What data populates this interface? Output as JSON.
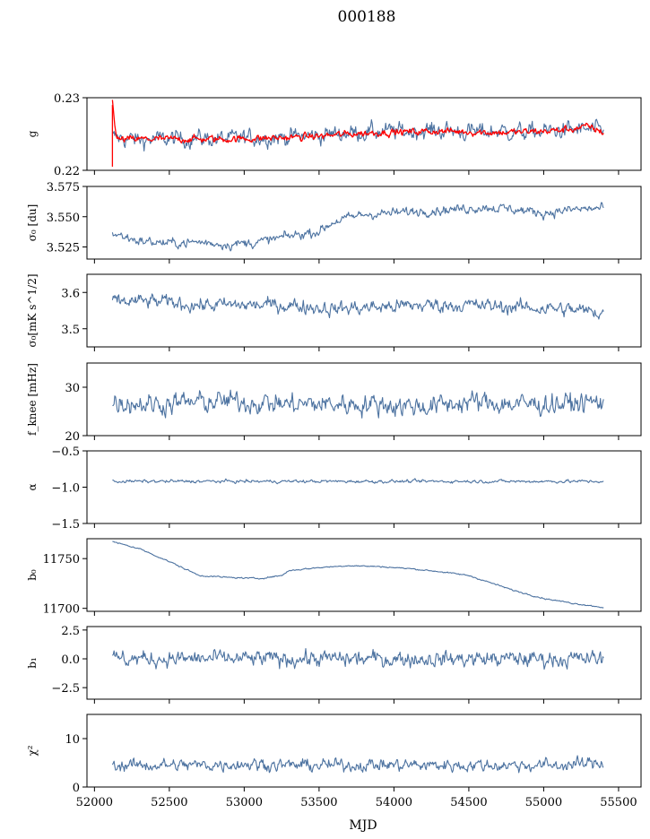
{
  "figure": {
    "title": "000188",
    "xlabel": "MJD",
    "series_color": "#4c72a0",
    "model_color": "#ff0000"
  },
  "chart_data": {
    "type": "line",
    "title": "000188",
    "xlabel": "MJD",
    "xlim": [
      51950,
      55650
    ],
    "x_ticks": [
      52000,
      52500,
      53000,
      53500,
      54000,
      54500,
      55000,
      55500
    ],
    "x_range": [
      52120,
      55400
    ],
    "panels": [
      {
        "id": "g",
        "ylabel": "g",
        "ylim": [
          0.22,
          0.23
        ],
        "yticks": [
          {
            "v": 0.22,
            "label": "0.22"
          },
          {
            "v": 0.23,
            "label": "0.23"
          }
        ],
        "series": [
          {
            "name": "",
            "color": "#4c72a0",
            "x": [
              52120,
              52300,
              52500,
              52700,
              52900,
              53100,
              53300,
              53500,
              53700,
              53900,
              54100,
              54300,
              54500,
              54700,
              54900,
              55100,
              55300,
              55400
            ],
            "y": [
              0.2245,
              0.2242,
              0.2243,
              0.2244,
              0.2243,
              0.2245,
              0.2246,
              0.2248,
              0.2252,
              0.2253,
              0.2254,
              0.2255,
              0.2253,
              0.2254,
              0.2252,
              0.2255,
              0.2256,
              0.2253
            ],
            "noise": 0.0012
          },
          {
            "name": "",
            "color": "#ff0000",
            "x": [
              52120,
              52150,
              52300,
              52500,
              52700,
              52900,
              53100,
              53300,
              53500,
              53700,
              53900,
              54100,
              54300,
              54500,
              54700,
              54900,
              55100,
              55300,
              55400
            ],
            "y": [
              0.2295,
              0.2242,
              0.2243,
              0.2243,
              0.2243,
              0.2243,
              0.2244,
              0.2245,
              0.2247,
              0.225,
              0.2252,
              0.2253,
              0.2254,
              0.2253,
              0.2252,
              0.2253,
              0.2255,
              0.226,
              0.2252
            ],
            "noise": 0.0005
          }
        ]
      },
      {
        "id": "sigma0-du",
        "ylabel": "σ₀ [du]",
        "ylim": [
          3.515,
          3.575
        ],
        "yticks": [
          {
            "v": 3.525,
            "label": "3.525"
          },
          {
            "v": 3.55,
            "label": "3.550"
          },
          {
            "v": 3.575,
            "label": "3.575"
          }
        ],
        "series": [
          {
            "name": "",
            "color": "#4c72a0",
            "x": [
              52120,
              52300,
              52500,
              52700,
              52900,
              53100,
              53300,
              53500,
              53600,
              53800,
              54000,
              54200,
              54400,
              54600,
              54800,
              55000,
              55200,
              55400
            ],
            "y": [
              3.536,
              3.53,
              3.528,
              3.529,
              3.527,
              3.529,
              3.534,
              3.538,
              3.546,
              3.552,
              3.553,
              3.555,
              3.556,
              3.558,
              3.556,
              3.553,
              3.556,
              3.557
            ],
            "noise": 0.004
          }
        ]
      },
      {
        "id": "sigma0-mk",
        "ylabel": "σ₀[mK s^1/2]",
        "ylim": [
          3.45,
          3.65
        ],
        "yticks": [
          {
            "v": 3.5,
            "label": "3.5"
          },
          {
            "v": 3.6,
            "label": "3.6"
          }
        ],
        "series": [
          {
            "name": "",
            "color": "#4c72a0",
            "x": [
              52120,
              52400,
              52700,
              53000,
              53300,
              53600,
              53900,
              54200,
              54500,
              54800,
              55100,
              55400
            ],
            "y": [
              3.575,
              3.575,
              3.565,
              3.565,
              3.565,
              3.555,
              3.56,
              3.565,
              3.565,
              3.56,
              3.555,
              3.545
            ],
            "noise": 0.02
          }
        ]
      },
      {
        "id": "fknee",
        "ylabel": "f_knee [mHz]",
        "ylim": [
          20,
          35
        ],
        "yticks": [
          {
            "v": 20,
            "label": "20"
          },
          {
            "v": 30,
            "label": "30"
          }
        ],
        "series": [
          {
            "name": "",
            "color": "#4c72a0",
            "x": [
              52120,
              52400,
              52700,
              53000,
              53300,
              53600,
              53900,
              54200,
              54500,
              54800,
              55100,
              55400
            ],
            "y": [
              27,
              26.5,
              27,
              27,
              26.5,
              26.5,
              26.5,
              26,
              27,
              26.5,
              26.5,
              27
            ],
            "noise": 2.2
          }
        ]
      },
      {
        "id": "alpha",
        "ylabel": "α",
        "ylim": [
          -1.5,
          -0.5
        ],
        "yticks": [
          {
            "v": -1.5,
            "label": "−1.5"
          },
          {
            "v": -1.0,
            "label": "−1.0"
          },
          {
            "v": -0.5,
            "label": "−0.5"
          }
        ],
        "series": [
          {
            "name": "",
            "color": "#4c72a0",
            "x": [
              52120,
              52800,
              53500,
              54200,
              54900,
              55400
            ],
            "y": [
              -0.92,
              -0.92,
              -0.92,
              -0.92,
              -0.92,
              -0.92
            ],
            "noise": 0.022
          }
        ]
      },
      {
        "id": "b0",
        "ylabel": "b₀",
        "ylim": [
          11697,
          11770
        ],
        "yticks": [
          {
            "v": 11700,
            "label": "11700"
          },
          {
            "v": 11750,
            "label": "11750"
          }
        ],
        "series": [
          {
            "name": "",
            "color": "#4c72a0",
            "x": [
              52120,
              52300,
              52500,
              52700,
              52900,
              53100,
              53250,
              53300,
              53500,
              53700,
              53900,
              54100,
              54300,
              54500,
              54600,
              54800,
              55000,
              55200,
              55400
            ],
            "y": [
              11767,
              11760,
              11747,
              11733,
              11731,
              11730,
              11733,
              11738,
              11741,
              11743,
              11742,
              11740,
              11737,
              11733,
              11728,
              11718,
              11710,
              11705,
              11701
            ],
            "noise": 0.7
          }
        ]
      },
      {
        "id": "b1",
        "ylabel": "b₁",
        "ylim": [
          -3.5,
          2.8
        ],
        "yticks": [
          {
            "v": -2.5,
            "label": "−2.5"
          },
          {
            "v": 0.0,
            "label": "0.0"
          },
          {
            "v": 2.5,
            "label": "2.5"
          }
        ],
        "series": [
          {
            "name": "",
            "color": "#4c72a0",
            "x": [
              52120,
              52800,
              53500,
              54200,
              54900,
              55400
            ],
            "y": [
              0.0,
              0.0,
              0.0,
              0.0,
              0.0,
              0.0
            ],
            "noise": 0.7
          }
        ]
      },
      {
        "id": "chi2",
        "ylabel": "χ²",
        "ylim": [
          0,
          15
        ],
        "yticks": [
          {
            "v": 0,
            "label": "0"
          },
          {
            "v": 10,
            "label": "10"
          }
        ],
        "series": [
          {
            "name": "",
            "color": "#4c72a0",
            "x": [
              52120,
              52400,
              52700,
              53000,
              53300,
              53600,
              53900,
              54200,
              54500,
              54800,
              55100,
              55400
            ],
            "y": [
              4.5,
              4.5,
              4.5,
              4.8,
              4.5,
              4.5,
              4.6,
              4.5,
              4.5,
              4.5,
              4.5,
              5.0
            ],
            "noise": 1.3
          }
        ]
      }
    ]
  }
}
